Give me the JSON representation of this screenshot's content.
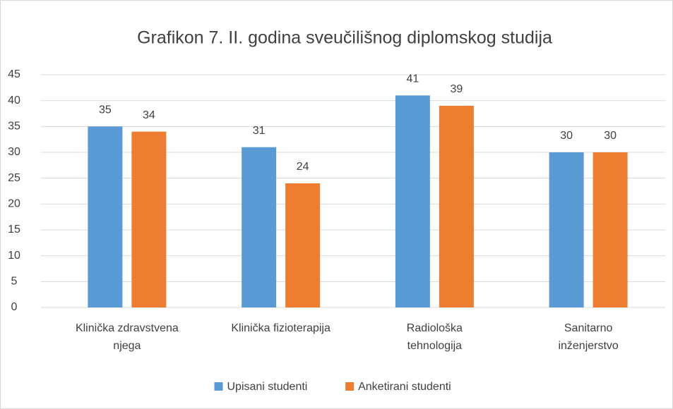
{
  "chart_data": {
    "type": "bar",
    "title": "Grafikon 7. II. godina sveučilišnog diplomskog studija",
    "categories": [
      [
        "Klinička zdravstvena",
        "njega"
      ],
      [
        "Klinička fizioterapija"
      ],
      [
        "Radiološka",
        "tehnologija"
      ],
      [
        "Sanitarno",
        "inženjerstvo"
      ]
    ],
    "series": [
      {
        "name": "Upisani studenti",
        "color": "#5b9bd5",
        "values": [
          35,
          31,
          41,
          30
        ]
      },
      {
        "name": "Anketirani studenti",
        "color": "#ed7d31",
        "values": [
          34,
          24,
          39,
          30
        ]
      }
    ],
    "ylim": [
      0,
      45
    ],
    "yticks": [
      0,
      5,
      10,
      15,
      20,
      25,
      30,
      35,
      40,
      45
    ],
    "grid": true,
    "legend": "bottom"
  }
}
